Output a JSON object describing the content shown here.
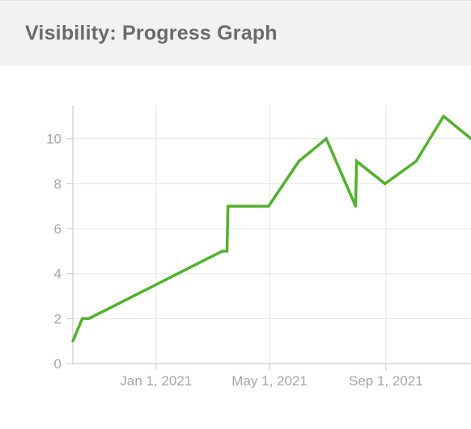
{
  "header": {
    "title": "Visibility: Progress Graph"
  },
  "chart_data": {
    "type": "line",
    "title": "Visibility: Progress Graph",
    "xlabel": "",
    "ylabel": "",
    "x_type": "date",
    "ylim": [
      0,
      11.5
    ],
    "xlim": [
      "2020-10-05",
      "2021-11-30"
    ],
    "y_ticks": [
      0,
      2,
      4,
      6,
      8,
      10
    ],
    "x_ticks": [
      {
        "date": "2021-01-01",
        "label": "Jan 1, 2021"
      },
      {
        "date": "2021-05-01",
        "label": "May 1, 2021"
      },
      {
        "date": "2021-09-01",
        "label": "Sep 1, 2021"
      }
    ],
    "grid": true,
    "colors": {
      "line": "#52b12c",
      "grid": "#e6e6e6",
      "axis": "#cccccc",
      "tick_text": "#a6a6a6"
    },
    "series": [
      {
        "points": [
          {
            "x": "2020-10-05",
            "y": 1
          },
          {
            "x": "2020-10-15",
            "y": 2
          },
          {
            "x": "2020-10-22",
            "y": 2
          },
          {
            "x": "2021-03-12",
            "y": 5
          },
          {
            "x": "2021-03-17",
            "y": 5
          },
          {
            "x": "2021-03-18",
            "y": 7
          },
          {
            "x": "2021-04-30",
            "y": 7
          },
          {
            "x": "2021-06-01",
            "y": 9
          },
          {
            "x": "2021-06-30",
            "y": 10
          },
          {
            "x": "2021-07-31",
            "y": 7
          },
          {
            "x": "2021-08-01",
            "y": 9
          },
          {
            "x": "2021-08-31",
            "y": 8
          },
          {
            "x": "2021-10-03",
            "y": 9
          },
          {
            "x": "2021-11-01",
            "y": 11
          },
          {
            "x": "2021-11-30",
            "y": 10
          }
        ]
      }
    ]
  }
}
